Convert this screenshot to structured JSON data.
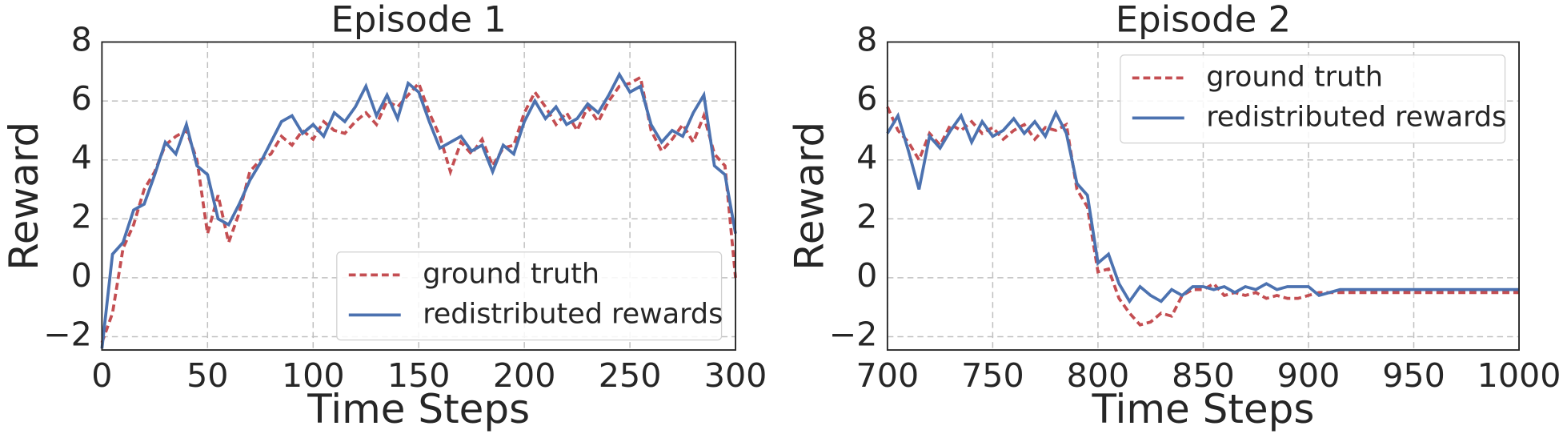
{
  "chart_data": [
    {
      "type": "line",
      "title": "Episode 1",
      "xlabel": "Time Steps",
      "ylabel": "Reward",
      "x": [
        0,
        5,
        10,
        15,
        20,
        25,
        30,
        35,
        40,
        45,
        50,
        55,
        60,
        65,
        70,
        75,
        80,
        85,
        90,
        95,
        100,
        105,
        110,
        115,
        120,
        125,
        130,
        135,
        140,
        145,
        150,
        155,
        160,
        165,
        170,
        175,
        180,
        185,
        190,
        195,
        200,
        205,
        210,
        215,
        220,
        225,
        230,
        235,
        240,
        245,
        250,
        255,
        260,
        265,
        270,
        275,
        280,
        285,
        290,
        295,
        300
      ],
      "series": [
        {
          "name": "ground truth",
          "color": "#c44e52",
          "dash": true,
          "values": [
            -2.2,
            -1.2,
            1.0,
            1.8,
            3.0,
            3.6,
            4.5,
            4.8,
            5.0,
            4.0,
            1.5,
            2.8,
            1.2,
            2.2,
            3.6,
            4.0,
            4.2,
            4.8,
            4.5,
            5.0,
            4.7,
            5.3,
            5.0,
            4.9,
            5.3,
            5.6,
            5.2,
            6.0,
            5.8,
            6.2,
            6.6,
            5.6,
            4.8,
            3.6,
            4.6,
            4.2,
            4.7,
            3.8,
            4.4,
            4.5,
            5.6,
            6.3,
            5.8,
            5.2,
            5.6,
            5.0,
            5.8,
            5.3,
            6.0,
            6.5,
            6.6,
            6.8,
            5.0,
            4.3,
            4.7,
            5.2,
            4.6,
            5.5,
            4.2,
            3.8,
            0.0
          ]
        },
        {
          "name": "redistributed rewards",
          "color": "#4c72b0",
          "dash": false,
          "values": [
            -2.4,
            0.8,
            1.2,
            2.3,
            2.5,
            3.5,
            4.6,
            4.2,
            5.2,
            3.8,
            3.5,
            2.0,
            1.8,
            2.5,
            3.3,
            3.9,
            4.6,
            5.3,
            5.5,
            4.9,
            5.2,
            4.8,
            5.6,
            5.3,
            5.8,
            6.5,
            5.5,
            6.2,
            5.4,
            6.6,
            6.3,
            5.3,
            4.4,
            4.6,
            4.8,
            4.3,
            4.5,
            3.6,
            4.5,
            4.2,
            5.3,
            6.0,
            5.4,
            5.8,
            5.2,
            5.4,
            5.9,
            5.6,
            6.2,
            6.9,
            6.3,
            6.5,
            5.2,
            4.6,
            5.0,
            4.8,
            5.6,
            6.2,
            3.8,
            3.5,
            1.5
          ]
        }
      ],
      "xlim": [
        0,
        300
      ],
      "xticks": [
        0,
        50,
        100,
        150,
        200,
        250,
        300
      ],
      "ylim": [
        -2.45,
        8
      ],
      "yticks": [
        {
          "value": -2,
          "label": "−2"
        },
        0,
        2,
        4,
        6,
        8
      ],
      "grid": true,
      "legend": "lower right"
    },
    {
      "type": "line",
      "title": "Episode 2",
      "xlabel": "Time Steps",
      "ylabel": "Reward",
      "x": [
        700,
        705,
        710,
        715,
        720,
        725,
        730,
        735,
        740,
        745,
        750,
        755,
        760,
        765,
        770,
        775,
        780,
        785,
        790,
        795,
        800,
        805,
        810,
        815,
        820,
        825,
        830,
        835,
        840,
        845,
        850,
        855,
        860,
        865,
        870,
        875,
        880,
        885,
        890,
        895,
        900,
        905,
        910,
        915,
        920,
        925,
        930,
        935,
        940,
        945,
        950,
        955,
        960,
        965,
        970,
        975,
        980,
        985,
        990,
        995,
        1000
      ],
      "series": [
        {
          "name": "ground truth",
          "color": "#c44e52",
          "dash": true,
          "values": [
            5.8,
            5.0,
            4.6,
            4.0,
            4.9,
            4.5,
            5.2,
            5.0,
            5.3,
            4.9,
            5.1,
            4.7,
            5.0,
            5.2,
            4.7,
            5.1,
            5.0,
            5.2,
            3.0,
            2.4,
            0.2,
            0.3,
            -0.7,
            -1.2,
            -1.6,
            -1.5,
            -1.2,
            -1.3,
            -0.6,
            -0.4,
            -0.4,
            -0.2,
            -0.6,
            -0.5,
            -0.6,
            -0.5,
            -0.7,
            -0.6,
            -0.7,
            -0.7,
            -0.6,
            -0.5,
            -0.5,
            -0.5,
            -0.5,
            -0.5,
            -0.5,
            -0.5,
            -0.5,
            -0.5,
            -0.5,
            -0.5,
            -0.5,
            -0.5,
            -0.5,
            -0.5,
            -0.5,
            -0.5,
            -0.5,
            -0.5,
            -0.5
          ]
        },
        {
          "name": "redistributed rewards",
          "color": "#4c72b0",
          "dash": false,
          "values": [
            4.9,
            5.5,
            4.3,
            3.0,
            4.8,
            4.4,
            5.0,
            5.5,
            4.6,
            5.3,
            4.8,
            5.0,
            5.4,
            4.9,
            5.3,
            4.8,
            5.6,
            4.9,
            3.2,
            2.8,
            0.5,
            0.8,
            -0.2,
            -0.8,
            -0.3,
            -0.6,
            -0.8,
            -0.4,
            -0.6,
            -0.3,
            -0.3,
            -0.4,
            -0.3,
            -0.5,
            -0.3,
            -0.4,
            -0.2,
            -0.4,
            -0.3,
            -0.3,
            -0.3,
            -0.6,
            -0.5,
            -0.4,
            -0.4,
            -0.4,
            -0.4,
            -0.4,
            -0.4,
            -0.4,
            -0.4,
            -0.4,
            -0.4,
            -0.4,
            -0.4,
            -0.4,
            -0.4,
            -0.4,
            -0.4,
            -0.4,
            -0.4
          ]
        }
      ],
      "xlim": [
        700,
        1000
      ],
      "xticks": [
        700,
        750,
        800,
        850,
        900,
        950,
        1000
      ],
      "ylim": [
        -2.45,
        8
      ],
      "yticks": [
        {
          "value": -2,
          "label": "−2"
        },
        0,
        2,
        4,
        6,
        8
      ],
      "grid": true,
      "legend": "upper right"
    }
  ]
}
